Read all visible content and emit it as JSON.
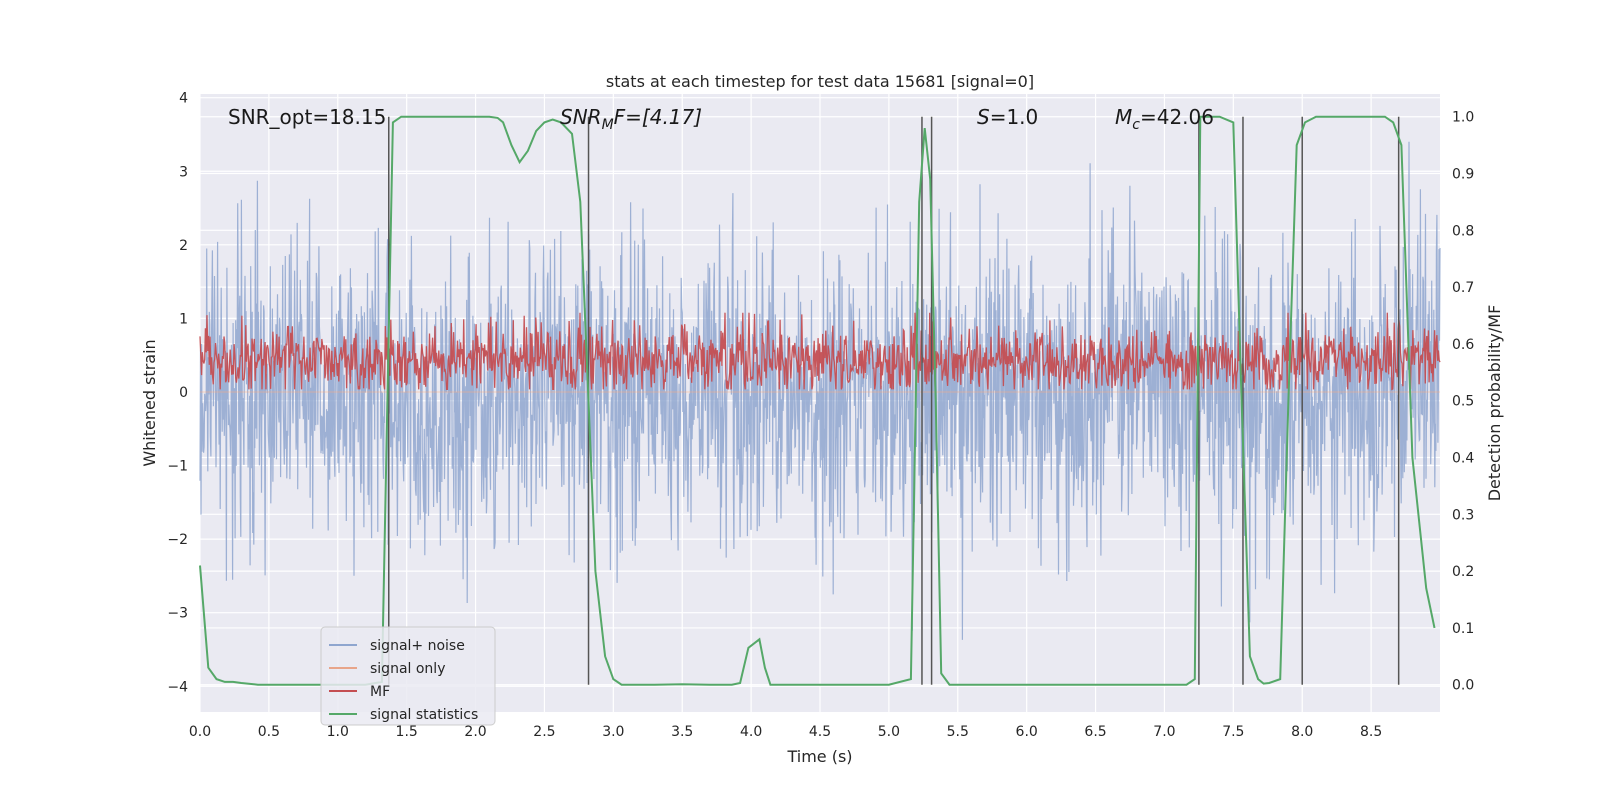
{
  "chart_data": {
    "type": "line",
    "title": "stats at each timestep for test data 15681 [signal=0]",
    "xlabel": "Time (s)",
    "ylabel": "Whitened strain",
    "y2label": "Detection probability/MF",
    "xlim": [
      0.0,
      9.0
    ],
    "ylim": [
      -4.35,
      4.05
    ],
    "y2lim": [
      -0.048,
      1.04
    ],
    "xticks": [
      "0.0",
      "0.5",
      "1.0",
      "1.5",
      "2.0",
      "2.5",
      "3.0",
      "3.5",
      "4.0",
      "4.5",
      "5.0",
      "5.5",
      "6.0",
      "6.5",
      "7.0",
      "7.5",
      "8.0",
      "8.5"
    ],
    "yticks": [
      "4",
      "3",
      "2",
      "1",
      "0",
      "−1",
      "−2",
      "−3",
      "−4"
    ],
    "y2ticks": [
      "1.0",
      "0.9",
      "0.8",
      "0.7",
      "0.6",
      "0.5",
      "0.4",
      "0.3",
      "0.2",
      "0.1",
      "0.0"
    ],
    "grid": true,
    "legend_placement": "lower-left",
    "annotations": {
      "snr_opt": "SNR_opt=18.15",
      "snr_mf_pre": "SNR",
      "snr_mf_sub": "M",
      "snr_mf_post": "F=[4.17]",
      "s_var": "S",
      "s_val": "=1.0",
      "mc_var": "M",
      "mc_sub": "c",
      "mc_val": "=42.06"
    },
    "series": [
      {
        "name": "signal+ noise",
        "color": "#8fa6cf",
        "axis": "left",
        "style": "noise band, approx ±1 sd with peaks to ±3.5",
        "sd": 1.0
      },
      {
        "name": "signal only",
        "color": "#e8a58a",
        "axis": "left",
        "style": "flat at 0"
      },
      {
        "name": "MF",
        "color": "#c44e52",
        "axis": "right",
        "style": "noise band between 0.52 and 0.64, centered 0.57",
        "mean": 0.57,
        "spread": 0.03
      },
      {
        "name": "signal statistics",
        "color": "#55a868",
        "axis": "right",
        "x": [
          0.0,
          0.06,
          0.12,
          0.18,
          0.24,
          0.3,
          0.42,
          0.6,
          0.9,
          1.2,
          1.32,
          1.36,
          1.4,
          1.46,
          1.52,
          1.6,
          1.8,
          2.0,
          2.1,
          2.16,
          2.2,
          2.26,
          2.32,
          2.38,
          2.44,
          2.5,
          2.56,
          2.62,
          2.7,
          2.76,
          2.82,
          2.87,
          2.94,
          3.0,
          3.06,
          3.12,
          3.3,
          3.5,
          3.7,
          3.86,
          3.92,
          3.98,
          4.06,
          4.1,
          4.14,
          4.2,
          4.5,
          5.0,
          5.16,
          5.22,
          5.26,
          5.3,
          5.34,
          5.38,
          5.44,
          5.5,
          5.6,
          6.0,
          6.5,
          7.0,
          7.16,
          7.22,
          7.26,
          7.3,
          7.4,
          7.5,
          7.56,
          7.62,
          7.68,
          7.72,
          7.76,
          7.84,
          7.9,
          7.96,
          8.02,
          8.1,
          8.2,
          8.4,
          8.6,
          8.66,
          8.72,
          8.8,
          8.9,
          8.96
        ],
        "y": [
          0.21,
          0.03,
          0.01,
          0.005,
          0.005,
          0.003,
          0.0,
          0.0,
          0.0,
          0.0,
          0.005,
          0.5,
          0.99,
          1.0,
          1.0,
          1.0,
          1.0,
          1.0,
          1.0,
          0.998,
          0.99,
          0.95,
          0.92,
          0.94,
          0.975,
          0.99,
          0.995,
          0.99,
          0.97,
          0.85,
          0.5,
          0.2,
          0.05,
          0.01,
          0.0,
          0.0,
          0.0,
          0.001,
          0.0,
          0.0,
          0.003,
          0.065,
          0.08,
          0.03,
          0.0,
          0.0,
          0.0,
          0.0,
          0.01,
          0.85,
          0.98,
          0.89,
          0.5,
          0.02,
          0.0,
          0.0,
          0.0,
          0.0,
          0.0,
          0.0,
          0.0,
          0.01,
          1.0,
          1.0,
          1.0,
          0.99,
          0.5,
          0.05,
          0.01,
          0.002,
          0.003,
          0.01,
          0.5,
          0.95,
          0.99,
          1.0,
          1.0,
          1.0,
          1.0,
          0.99,
          0.95,
          0.4,
          0.17,
          0.1
        ]
      }
    ],
    "vlines": [
      1.37,
      2.82,
      5.24,
      5.31,
      7.25,
      7.57,
      8.0,
      8.7
    ]
  },
  "legend": {
    "items": [
      {
        "label": "signal+ noise",
        "color": "#8fa6cf"
      },
      {
        "label": "signal only",
        "color": "#e8a58a"
      },
      {
        "label": "MF",
        "color": "#c44e52"
      },
      {
        "label": "signal statistics",
        "color": "#55a868"
      }
    ]
  },
  "colors": {
    "plot_bg": "#eaeaf2",
    "grid": "#ffffff",
    "vline": "#555555"
  }
}
